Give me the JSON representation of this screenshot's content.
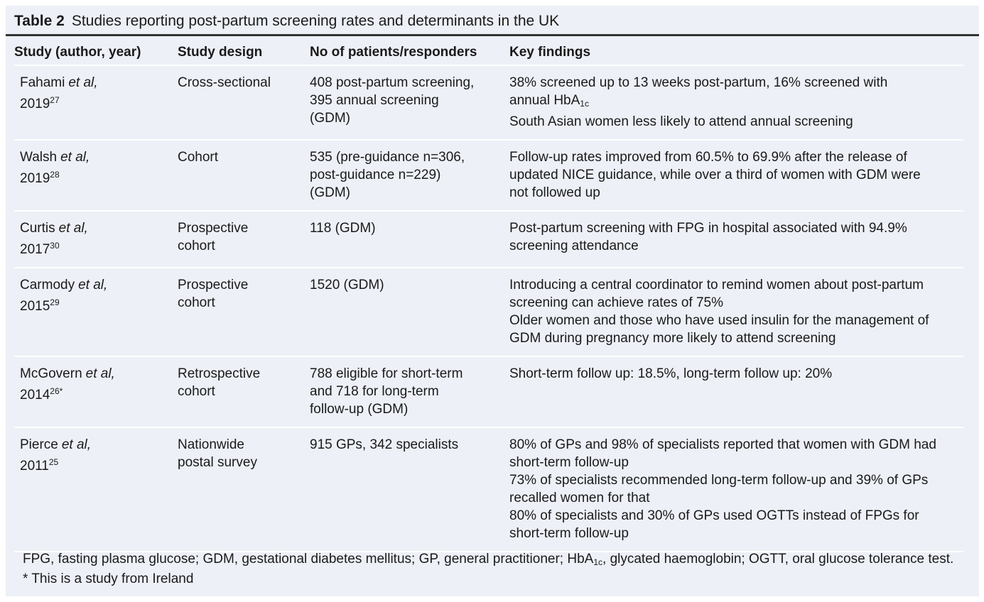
{
  "header": {
    "label": "Table 2",
    "title": "Studies reporting post-partum screening rates and determinants in the UK"
  },
  "table": {
    "columns": [
      "Study (author, year)",
      "Study design",
      "No of patients/responders",
      "Key findings"
    ],
    "rows": [
      [
        [
          {
            "text": "Fahami",
            "it": "et al,"
          },
          {
            "text": "2019",
            "sup": "27"
          }
        ],
        [
          "Cross-sectional"
        ],
        [
          "408 post-partum screening,",
          "395 annual screening",
          "(GDM)"
        ],
        [
          "38% screened up to 13 weeks post-partum, 16% screened with",
          {
            "text": "annual HbA",
            "sub": "1c"
          },
          "South Asian women less likely to attend annual screening"
        ]
      ],
      [
        [
          {
            "text": "Walsh",
            "it": "et al,"
          },
          {
            "text": "2019",
            "sup": "28"
          }
        ],
        [
          "Cohort"
        ],
        [
          "535 (pre-guidance n=306,",
          "post-guidance n=229)",
          "(GDM)"
        ],
        [
          "Follow-up rates improved from 60.5% to 69.9% after the release of",
          "updated NICE guidance, while over a third of women with GDM were",
          "not followed up"
        ]
      ],
      [
        [
          {
            "text": "Curtis",
            "it": "et al,"
          },
          {
            "text": "2017",
            "sup": "30"
          }
        ],
        [
          "Prospective",
          "cohort"
        ],
        [
          "118 (GDM)"
        ],
        [
          "Post-partum screening with FPG in hospital associated with 94.9%",
          "screening attendance"
        ]
      ],
      [
        [
          {
            "text": "Carmody",
            "it": "et al,"
          },
          {
            "text": "2015",
            "sup": "29"
          }
        ],
        [
          "Prospective",
          "cohort"
        ],
        [
          "1520 (GDM)"
        ],
        [
          "Introducing a central coordinator to remind women about post-partum",
          "screening can achieve rates of 75%",
          "Older women and those who have used insulin for the management of",
          "GDM during pregnancy more likely to attend screening"
        ]
      ],
      [
        [
          {
            "text": "McGovern",
            "it": "et al,"
          },
          {
            "text": "2014",
            "sup": "26*"
          }
        ],
        [
          "Retrospective",
          "cohort"
        ],
        [
          "788 eligible for short-term",
          "and 718 for long-term",
          "follow-up (GDM)"
        ],
        [
          "Short-term follow up: 18.5%, long-term follow up: 20%"
        ]
      ],
      [
        [
          {
            "text": "Pierce",
            "it": "et al,"
          },
          {
            "text": "2011",
            "sup": "25"
          }
        ],
        [
          "Nationwide",
          "postal survey"
        ],
        [
          "915 GPs, 342 specialists"
        ],
        [
          "80% of GPs and 98% of specialists reported that women with GDM had",
          "short-term follow-up",
          "73% of specialists recommended long-term follow-up and 39% of GPs",
          "recalled women for that",
          "80% of specialists and 30% of GPs used OGTTs instead of FPGs for",
          "short-term follow-up"
        ]
      ]
    ]
  },
  "footnotes": [
    {
      "text": "FPG, fasting plasma glucose; GDM, gestational diabetes mellitus; GP, general practitioner; HbA",
      "sub": "1c",
      "after": ", glycated haemoglobin; OGTT, oral glucose tolerance test."
    },
    "* This is a study from Ireland"
  ]
}
